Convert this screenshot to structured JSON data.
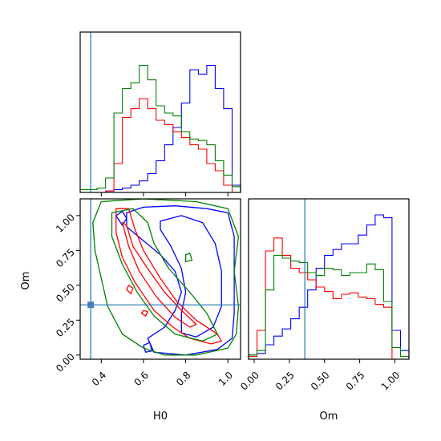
{
  "chart_data": {
    "type": "corner",
    "parameters": [
      "H0",
      "Om"
    ],
    "truth": {
      "H0": 0.35,
      "Om": 0.36
    },
    "colors": {
      "truth": "#1f77b4",
      "blue": "#0000ff",
      "red": "#ff0000",
      "green": "#008000"
    },
    "axes": {
      "h0_xlim": [
        0.3,
        1.06
      ],
      "om_ylim": [
        -0.03,
        1.12
      ],
      "om_xlim": [
        -0.04,
        1.1
      ],
      "h0_ticks": [
        0.4,
        0.6,
        0.8,
        1.0
      ],
      "h0_tick_labels": [
        "0.4",
        "0.6",
        "0.8",
        "1.0"
      ],
      "om_ticks": [
        0.0,
        0.25,
        0.5,
        0.75,
        1.0
      ],
      "om_tick_labels": [
        "0.00",
        "0.25",
        "0.50",
        "0.75",
        "1.00"
      ]
    },
    "labels": {
      "xlabel_h0": "H0",
      "xlabel_om": "Om",
      "ylabel_om": "Om"
    },
    "series": [
      {
        "color": "blue",
        "h0_hist": {
          "edges": [
            0.3,
            0.34,
            0.38,
            0.42,
            0.46,
            0.5,
            0.54,
            0.58,
            0.62,
            0.66,
            0.7,
            0.74,
            0.78,
            0.82,
            0.86,
            0.9,
            0.94,
            0.98,
            1.02,
            1.06
          ],
          "counts": [
            0,
            0,
            0,
            0.01,
            0.02,
            0.03,
            0.05,
            0.08,
            0.13,
            0.22,
            0.33,
            0.45,
            0.62,
            0.85,
            0.82,
            0.88,
            0.72,
            0.58,
            0.05
          ]
        },
        "om_hist": {
          "edges": [
            -0.04,
            0.02,
            0.08,
            0.14,
            0.2,
            0.26,
            0.32,
            0.38,
            0.44,
            0.5,
            0.56,
            0.62,
            0.68,
            0.74,
            0.8,
            0.86,
            0.92,
            0.98,
            1.04,
            1.1
          ],
          "counts": [
            0.02,
            0.04,
            0.1,
            0.16,
            0.21,
            0.28,
            0.36,
            0.48,
            0.63,
            0.72,
            0.76,
            0.8,
            0.8,
            0.86,
            0.93,
            1.0,
            0.98,
            0.2,
            0.06
          ]
        },
        "contours": [
          [
            [
              0.52,
              1.02
            ],
            [
              0.6,
              1.06
            ],
            [
              0.75,
              1.07
            ],
            [
              0.9,
              1.05
            ],
            [
              1.0,
              1.02
            ],
            [
              1.03,
              0.85
            ],
            [
              1.03,
              0.6
            ],
            [
              1.03,
              0.3
            ],
            [
              1.02,
              0.12
            ],
            [
              0.95,
              0.04
            ],
            [
              0.8,
              0.0
            ],
            [
              0.65,
              0.02
            ],
            [
              0.62,
              0.12
            ],
            [
              0.7,
              0.2
            ],
            [
              0.75,
              0.32
            ],
            [
              0.78,
              0.45
            ],
            [
              0.75,
              0.6
            ],
            [
              0.68,
              0.72
            ],
            [
              0.6,
              0.82
            ],
            [
              0.52,
              0.92
            ],
            [
              0.52,
              1.02
            ]
          ],
          [
            [
              0.68,
              0.96
            ],
            [
              0.78,
              1.0
            ],
            [
              0.88,
              0.95
            ],
            [
              0.94,
              0.8
            ],
            [
              0.97,
              0.6
            ],
            [
              0.97,
              0.35
            ],
            [
              0.93,
              0.2
            ],
            [
              0.85,
              0.13
            ],
            [
              0.78,
              0.16
            ],
            [
              0.78,
              0.3
            ],
            [
              0.8,
              0.45
            ],
            [
              0.78,
              0.62
            ],
            [
              0.73,
              0.78
            ],
            [
              0.68,
              0.9
            ],
            [
              0.68,
              0.96
            ]
          ],
          [
            [
              0.47,
              1.0
            ],
            [
              0.5,
              1.03
            ],
            [
              0.52,
              0.98
            ],
            [
              0.5,
              0.93
            ],
            [
              0.47,
              1.0
            ]
          ],
          [
            [
              0.6,
              0.07
            ],
            [
              0.63,
              0.09
            ],
            [
              0.64,
              0.03
            ],
            [
              0.61,
              0.02
            ],
            [
              0.6,
              0.07
            ]
          ]
        ]
      },
      {
        "color": "red",
        "h0_hist": {
          "edges": [
            0.3,
            0.34,
            0.38,
            0.42,
            0.46,
            0.5,
            0.54,
            0.58,
            0.62,
            0.66,
            0.7,
            0.74,
            0.78,
            0.82,
            0.86,
            0.9,
            0.94,
            0.98,
            1.02,
            1.06
          ],
          "counts": [
            0,
            0,
            0,
            0.01,
            0.2,
            0.52,
            0.58,
            0.65,
            0.58,
            0.5,
            0.47,
            0.42,
            0.38,
            0.33,
            0.3,
            0.2,
            0.15,
            0.05,
            0
          ]
        },
        "om_hist": {
          "edges": [
            -0.04,
            0.02,
            0.08,
            0.14,
            0.2,
            0.26,
            0.32,
            0.38,
            0.44,
            0.5,
            0.56,
            0.62,
            0.68,
            0.74,
            0.8,
            0.86,
            0.92,
            0.98,
            1.04,
            1.1
          ],
          "counts": [
            0.02,
            0.2,
            0.75,
            0.84,
            0.72,
            0.63,
            0.6,
            0.55,
            0.5,
            0.47,
            0.42,
            0.45,
            0.46,
            0.43,
            0.42,
            0.38,
            0.36,
            0,
            0
          ]
        },
        "contours": [
          [
            [
              0.47,
              1.05
            ],
            [
              0.53,
              1.05
            ],
            [
              0.56,
              0.9
            ],
            [
              0.6,
              0.75
            ],
            [
              0.68,
              0.55
            ],
            [
              0.76,
              0.38
            ],
            [
              0.85,
              0.25
            ],
            [
              0.95,
              0.15
            ],
            [
              0.97,
              0.1
            ],
            [
              0.92,
              0.08
            ],
            [
              0.82,
              0.12
            ],
            [
              0.74,
              0.2
            ],
            [
              0.65,
              0.32
            ],
            [
              0.56,
              0.52
            ],
            [
              0.5,
              0.7
            ],
            [
              0.47,
              0.88
            ],
            [
              0.47,
              1.05
            ]
          ],
          [
            [
              0.5,
              0.95
            ],
            [
              0.52,
              0.93
            ],
            [
              0.55,
              0.78
            ],
            [
              0.62,
              0.62
            ],
            [
              0.7,
              0.45
            ],
            [
              0.78,
              0.32
            ],
            [
              0.85,
              0.22
            ],
            [
              0.82,
              0.2
            ],
            [
              0.75,
              0.27
            ],
            [
              0.66,
              0.42
            ],
            [
              0.58,
              0.6
            ],
            [
              0.53,
              0.78
            ],
            [
              0.5,
              0.95
            ]
          ],
          [
            [
              0.53,
              0.5
            ],
            [
              0.55,
              0.48
            ],
            [
              0.54,
              0.44
            ],
            [
              0.52,
              0.47
            ],
            [
              0.53,
              0.5
            ]
          ],
          [
            [
              0.6,
              0.32
            ],
            [
              0.62,
              0.31
            ],
            [
              0.61,
              0.28
            ],
            [
              0.59,
              0.3
            ],
            [
              0.6,
              0.32
            ]
          ]
        ]
      },
      {
        "color": "green",
        "h0_hist": {
          "edges": [
            0.3,
            0.34,
            0.38,
            0.42,
            0.46,
            0.5,
            0.54,
            0.58,
            0.62,
            0.66,
            0.7,
            0.74,
            0.78,
            0.82,
            0.86,
            0.9,
            0.94,
            0.98,
            1.02,
            1.06
          ],
          "counts": [
            0.02,
            0.02,
            0.03,
            0.1,
            0.55,
            0.72,
            0.76,
            0.88,
            0.78,
            0.6,
            0.55,
            0.53,
            0.42,
            0.37,
            0.36,
            0.33,
            0.22,
            0.12,
            0.04
          ]
        },
        "om_hist": {
          "edges": [
            -0.04,
            0.02,
            0.08,
            0.14,
            0.2,
            0.26,
            0.32,
            0.38,
            0.44,
            0.5,
            0.56,
            0.62,
            0.68,
            0.74,
            0.8,
            0.86,
            0.92,
            0.98,
            1.04,
            1.1
          ],
          "counts": [
            0.03,
            0.06,
            0.48,
            0.72,
            0.7,
            0.68,
            0.67,
            0.6,
            0.58,
            0.63,
            0.62,
            0.58,
            0.6,
            0.6,
            0.66,
            0.62,
            0.4,
            0.08,
            0.02
          ]
        },
        "contours": [
          [
            [
              0.4,
              1.1
            ],
            [
              0.6,
              1.12
            ],
            [
              0.85,
              1.1
            ],
            [
              1.0,
              1.05
            ],
            [
              1.05,
              0.85
            ],
            [
              1.03,
              0.6
            ],
            [
              1.05,
              0.35
            ],
            [
              1.04,
              0.15
            ],
            [
              1.0,
              0.05
            ],
            [
              0.85,
              0.0
            ],
            [
              0.7,
              0.0
            ],
            [
              0.6,
              0.05
            ],
            [
              0.5,
              0.15
            ],
            [
              0.43,
              0.35
            ],
            [
              0.4,
              0.55
            ],
            [
              0.37,
              0.75
            ],
            [
              0.36,
              0.95
            ],
            [
              0.4,
              1.1
            ]
          ],
          [
            [
              0.45,
              1.02
            ],
            [
              0.55,
              1.05
            ],
            [
              0.62,
              0.95
            ],
            [
              0.65,
              0.8
            ],
            [
              0.72,
              0.62
            ],
            [
              0.82,
              0.45
            ],
            [
              0.9,
              0.3
            ],
            [
              0.95,
              0.15
            ],
            [
              0.88,
              0.1
            ],
            [
              0.75,
              0.15
            ],
            [
              0.65,
              0.28
            ],
            [
              0.57,
              0.45
            ],
            [
              0.5,
              0.65
            ],
            [
              0.45,
              0.85
            ],
            [
              0.45,
              1.02
            ]
          ],
          [
            [
              0.8,
              0.72
            ],
            [
              0.82,
              0.73
            ],
            [
              0.83,
              0.68
            ],
            [
              0.8,
              0.67
            ],
            [
              0.8,
              0.72
            ]
          ]
        ]
      }
    ]
  }
}
